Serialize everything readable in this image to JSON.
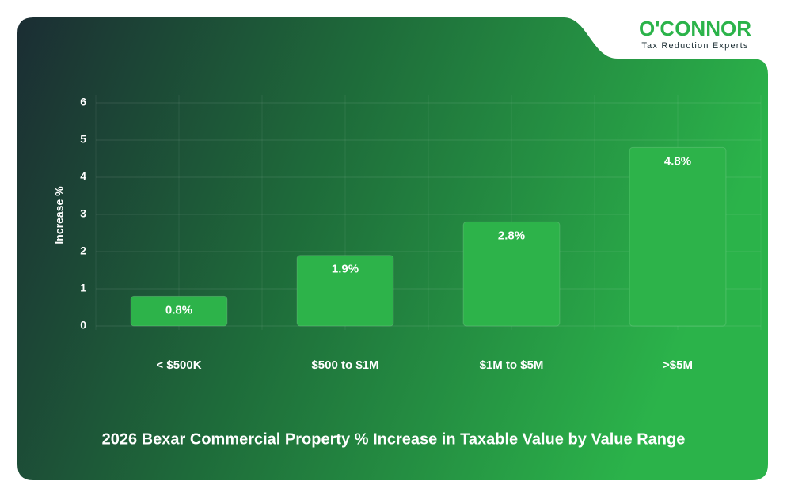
{
  "logo": {
    "name": "O'CONNOR",
    "tagline": "Tax Reduction Experts"
  },
  "chart_data": {
    "type": "bar",
    "title": "2026 Bexar Commercial Property % Increase in Taxable Value by Value Range",
    "y_label": "Increase %",
    "categories": [
      "< $500K",
      "$500 to $1M",
      "$1M to $5M",
      ">$5M"
    ],
    "values": [
      0.8,
      1.9,
      2.8,
      4.8
    ],
    "value_labels": [
      "0.8%",
      "1.9%",
      "2.8%",
      "4.8%"
    ],
    "color": "#2db34a",
    "ylim": [
      0,
      6
    ],
    "yticks": [
      0,
      1,
      2,
      3,
      4,
      5,
      6
    ],
    "grid": true
  }
}
